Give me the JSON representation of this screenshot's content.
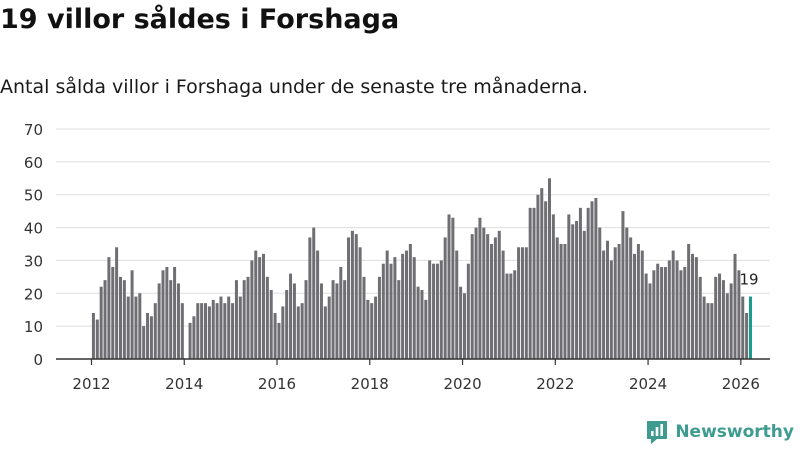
{
  "title": "19 villor såldes i Forshaga",
  "subtitle": "Antal sålda villor i Forshaga under de senaste tre månaderna.",
  "brand": "Newsworthy",
  "colors": {
    "bar": "#6e6e73",
    "highlight": "#1a9a8a",
    "grid": "#dddddd",
    "axis": "#333333",
    "brand": "#3d9b90"
  },
  "chart_data": {
    "type": "bar",
    "title": "19 villor såldes i Forshaga",
    "xlabel": "",
    "ylabel": "",
    "ylim": [
      0,
      70
    ],
    "yticks": [
      0,
      10,
      20,
      30,
      40,
      50,
      60,
      70
    ],
    "xticks": [
      "2012",
      "2014",
      "2016",
      "2018",
      "2020",
      "2022",
      "2024",
      "2026"
    ],
    "x_start": "2012-01",
    "frequency": "monthly",
    "highlight_label": "19",
    "values": [
      14,
      12,
      22,
      24,
      31,
      28,
      34,
      25,
      24,
      19,
      27,
      19,
      20,
      10,
      14,
      13,
      17,
      23,
      27,
      28,
      24,
      28,
      23,
      17,
      0,
      11,
      13,
      17,
      17,
      17,
      16,
      18,
      17,
      19,
      17,
      19,
      17,
      24,
      19,
      24,
      25,
      30,
      33,
      31,
      32,
      25,
      21,
      14,
      11,
      16,
      21,
      26,
      23,
      16,
      17,
      24,
      37,
      40,
      33,
      23,
      16,
      19,
      24,
      23,
      28,
      24,
      37,
      39,
      38,
      34,
      25,
      18,
      17,
      19,
      25,
      29,
      33,
      29,
      31,
      24,
      32,
      33,
      35,
      31,
      22,
      21,
      18,
      30,
      29,
      29,
      30,
      37,
      44,
      43,
      33,
      22,
      20,
      29,
      38,
      40,
      43,
      40,
      38,
      35,
      37,
      39,
      33,
      26,
      26,
      27,
      34,
      34,
      34,
      46,
      46,
      50,
      52,
      48,
      55,
      44,
      37,
      35,
      35,
      44,
      41,
      42,
      46,
      39,
      46,
      48,
      49,
      40,
      33,
      36,
      30,
      34,
      35,
      45,
      40,
      37,
      32,
      35,
      33,
      26,
      23,
      27,
      29,
      28,
      28,
      30,
      33,
      30,
      27,
      28,
      35,
      32,
      31,
      25,
      19,
      17,
      17,
      25,
      26,
      24,
      20,
      23,
      32,
      27,
      19,
      14,
      19
    ]
  }
}
